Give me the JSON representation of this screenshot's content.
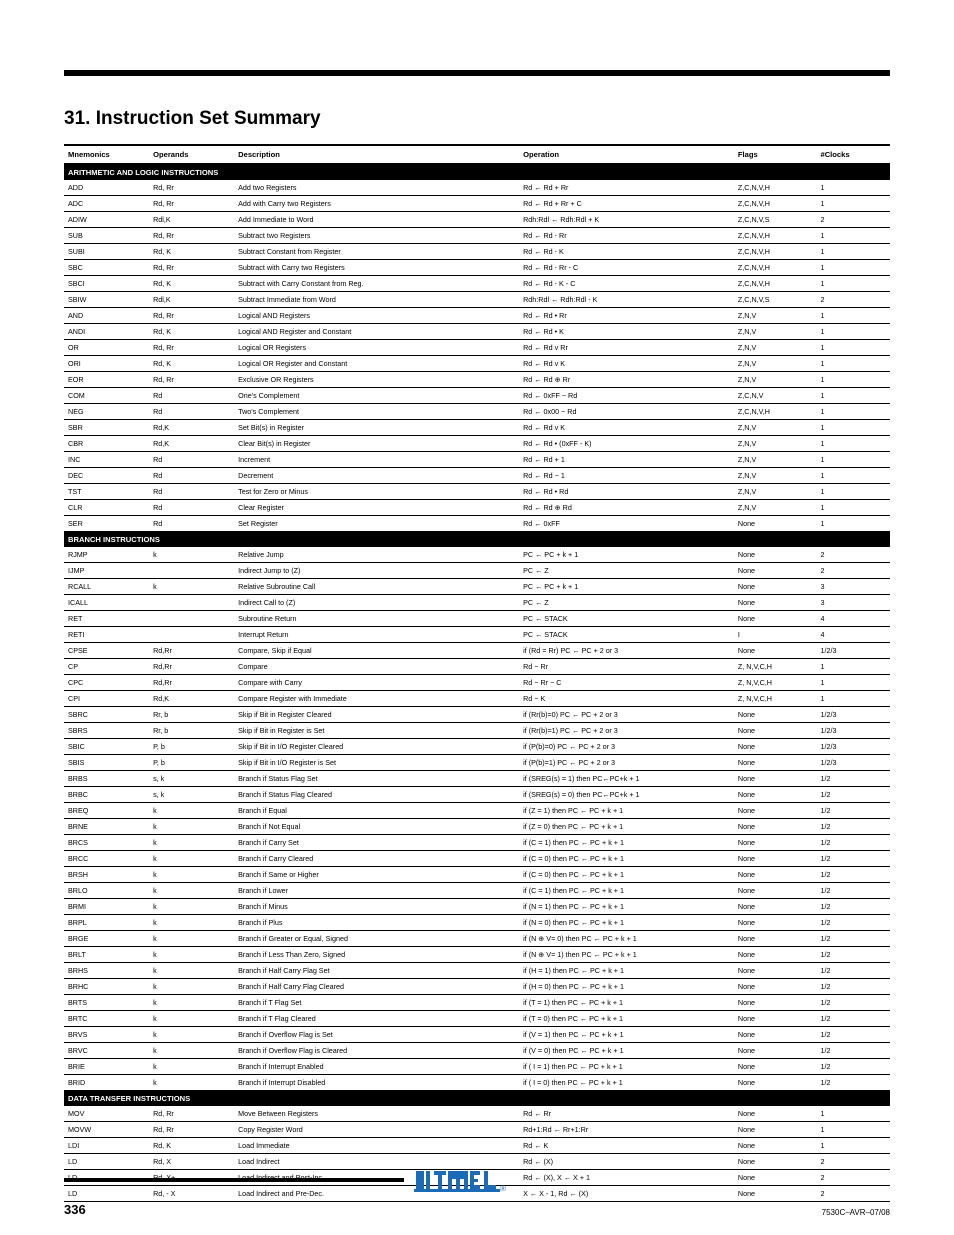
{
  "heading": "31.  Instruction Set Summary",
  "columns": [
    "Mnemonics",
    "Operands",
    "Description",
    "Operation",
    "Flags",
    "#Clocks"
  ],
  "sections": [
    {
      "title": "ARITHMETIC AND LOGIC INSTRUCTIONS",
      "rows": [
        {
          "mn": "ADD",
          "op": "Rd, Rr",
          "desc": "Add two Registers",
          "oper": "Rd ← Rd + Rr",
          "flags": "Z,C,N,V,H",
          "clk": "1"
        },
        {
          "mn": "ADC",
          "op": "Rd, Rr",
          "desc": "Add with Carry two Registers",
          "oper": "Rd ← Rd + Rr + C",
          "flags": "Z,C,N,V,H",
          "clk": "1"
        },
        {
          "mn": "ADIW",
          "op": "Rdl,K",
          "desc": "Add Immediate to Word",
          "oper": "Rdh:Rdl ← Rdh:Rdl + K",
          "flags": "Z,C,N,V,S",
          "clk": "2"
        },
        {
          "mn": "SUB",
          "op": "Rd, Rr",
          "desc": "Subtract two Registers",
          "oper": "Rd ← Rd - Rr",
          "flags": "Z,C,N,V,H",
          "clk": "1"
        },
        {
          "mn": "SUBI",
          "op": "Rd, K",
          "desc": "Subtract Constant from Register",
          "oper": "Rd ← Rd - K",
          "flags": "Z,C,N,V,H",
          "clk": "1"
        },
        {
          "mn": "SBC",
          "op": "Rd, Rr",
          "desc": "Subtract with Carry two Registers",
          "oper": "Rd ← Rd - Rr - C",
          "flags": "Z,C,N,V,H",
          "clk": "1"
        },
        {
          "mn": "SBCI",
          "op": "Rd, K",
          "desc": "Subtract with Carry Constant from Reg.",
          "oper": "Rd ← Rd - K - C",
          "flags": "Z,C,N,V,H",
          "clk": "1"
        },
        {
          "mn": "SBIW",
          "op": "Rdl,K",
          "desc": "Subtract Immediate from Word",
          "oper": "Rdh:Rdl ← Rdh:Rdl - K",
          "flags": "Z,C,N,V,S",
          "clk": "2"
        },
        {
          "mn": "AND",
          "op": "Rd, Rr",
          "desc": "Logical AND Registers",
          "oper": "Rd ← Rd • Rr",
          "flags": "Z,N,V",
          "clk": "1"
        },
        {
          "mn": "ANDI",
          "op": "Rd, K",
          "desc": "Logical AND Register and Constant",
          "oper": "Rd ← Rd • K",
          "flags": "Z,N,V",
          "clk": "1"
        },
        {
          "mn": "OR",
          "op": "Rd, Rr",
          "desc": "Logical OR Registers",
          "oper": "Rd ← Rd v Rr",
          "flags": "Z,N,V",
          "clk": "1"
        },
        {
          "mn": "ORI",
          "op": "Rd, K",
          "desc": "Logical OR Register and Constant",
          "oper": "Rd ← Rd v K",
          "flags": "Z,N,V",
          "clk": "1"
        },
        {
          "mn": "EOR",
          "op": "Rd, Rr",
          "desc": "Exclusive OR Registers",
          "oper": "Rd ← Rd ⊕ Rr",
          "flags": "Z,N,V",
          "clk": "1"
        },
        {
          "mn": "COM",
          "op": "Rd",
          "desc": "One's Complement",
          "oper": "Rd ← 0xFF − Rd",
          "flags": "Z,C,N,V",
          "clk": "1"
        },
        {
          "mn": "NEG",
          "op": "Rd",
          "desc": "Two's Complement",
          "oper": "Rd ← 0x00 − Rd",
          "flags": "Z,C,N,V,H",
          "clk": "1"
        },
        {
          "mn": "SBR",
          "op": "Rd,K",
          "desc": "Set Bit(s) in Register",
          "oper": "Rd ← Rd v K",
          "flags": "Z,N,V",
          "clk": "1"
        },
        {
          "mn": "CBR",
          "op": "Rd,K",
          "desc": "Clear Bit(s) in Register",
          "oper": "Rd ← Rd • (0xFF - K)",
          "flags": "Z,N,V",
          "clk": "1"
        },
        {
          "mn": "INC",
          "op": "Rd",
          "desc": "Increment",
          "oper": "Rd ← Rd + 1",
          "flags": "Z,N,V",
          "clk": "1"
        },
        {
          "mn": "DEC",
          "op": "Rd",
          "desc": "Decrement",
          "oper": "Rd ← Rd − 1",
          "flags": "Z,N,V",
          "clk": "1"
        },
        {
          "mn": "TST",
          "op": "Rd",
          "desc": "Test for Zero or Minus",
          "oper": "Rd ← Rd • Rd",
          "flags": "Z,N,V",
          "clk": "1"
        },
        {
          "mn": "CLR",
          "op": "Rd",
          "desc": "Clear Register",
          "oper": "Rd  ← Rd ⊕ Rd",
          "flags": "Z,N,V",
          "clk": "1"
        },
        {
          "mn": "SER",
          "op": "Rd",
          "desc": "Set Register",
          "oper": "Rd ← 0xFF",
          "flags": "None",
          "clk": "1"
        }
      ]
    },
    {
      "title": "BRANCH INSTRUCTIONS",
      "rows": [
        {
          "mn": "RJMP",
          "op": "k",
          "desc": "Relative Jump",
          "oper": "PC ← PC + k + 1",
          "flags": "None",
          "clk": "2"
        },
        {
          "mn": "IJMP",
          "op": "",
          "desc": "Indirect Jump to (Z)",
          "oper": "PC ← Z",
          "flags": "None",
          "clk": "2"
        },
        {
          "mn": "RCALL",
          "op": "k",
          "desc": "Relative Subroutine Call",
          "oper": "PC ← PC + k + 1",
          "flags": "None",
          "clk": "3"
        },
        {
          "mn": "ICALL",
          "op": "",
          "desc": "Indirect Call to (Z)",
          "oper": "PC ← Z",
          "flags": "None",
          "clk": "3"
        },
        {
          "mn": "RET",
          "op": "",
          "desc": "Subroutine Return",
          "oper": "PC ← STACK",
          "flags": "None",
          "clk": "4"
        },
        {
          "mn": "RETI",
          "op": "",
          "desc": "Interrupt Return",
          "oper": "PC ← STACK",
          "flags": "I",
          "clk": "4"
        },
        {
          "mn": "CPSE",
          "op": "Rd,Rr",
          "desc": "Compare, Skip if Equal",
          "oper": "if (Rd = Rr) PC ← PC + 2 or 3",
          "flags": "None",
          "clk": "1/2/3"
        },
        {
          "mn": "CP",
          "op": "Rd,Rr",
          "desc": "Compare",
          "oper": "Rd − Rr",
          "flags": "Z, N,V,C,H",
          "clk": "1"
        },
        {
          "mn": "CPC",
          "op": "Rd,Rr",
          "desc": "Compare with Carry",
          "oper": "Rd − Rr − C",
          "flags": "Z, N,V,C,H",
          "clk": "1"
        },
        {
          "mn": "CPI",
          "op": "Rd,K",
          "desc": "Compare Register with Immediate",
          "oper": "Rd − K",
          "flags": "Z, N,V,C,H",
          "clk": "1"
        },
        {
          "mn": "SBRC",
          "op": "Rr, b",
          "desc": "Skip if Bit in Register Cleared",
          "oper": "if (Rr(b)=0) PC ← PC + 2 or 3",
          "flags": "None",
          "clk": "1/2/3"
        },
        {
          "mn": "SBRS",
          "op": "Rr, b",
          "desc": "Skip if Bit in Register is Set",
          "oper": "if (Rr(b)=1) PC ← PC + 2 or 3",
          "flags": "None",
          "clk": "1/2/3"
        },
        {
          "mn": "SBIC",
          "op": "P, b",
          "desc": "Skip if Bit in I/O Register Cleared",
          "oper": "if (P(b)=0) PC ← PC + 2 or 3",
          "flags": "None",
          "clk": "1/2/3"
        },
        {
          "mn": "SBIS",
          "op": "P, b",
          "desc": "Skip if Bit in I/O Register is Set",
          "oper": "if (P(b)=1) PC ← PC + 2 or 3",
          "flags": "None",
          "clk": "1/2/3"
        },
        {
          "mn": "BRBS",
          "op": "s, k",
          "desc": "Branch if Status Flag Set",
          "oper": "if (SREG(s) = 1) then PC←PC+k + 1",
          "flags": "None",
          "clk": "1/2"
        },
        {
          "mn": "BRBC",
          "op": "s, k",
          "desc": "Branch if Status Flag Cleared",
          "oper": "if (SREG(s) = 0) then PC←PC+k + 1",
          "flags": "None",
          "clk": "1/2"
        },
        {
          "mn": "BREQ",
          "op": " k",
          "desc": "Branch if Equal",
          "oper": "if (Z = 1) then PC ← PC + k + 1",
          "flags": "None",
          "clk": "1/2"
        },
        {
          "mn": "BRNE",
          "op": " k",
          "desc": "Branch if Not Equal",
          "oper": "if (Z = 0) then PC ← PC + k + 1",
          "flags": "None",
          "clk": "1/2"
        },
        {
          "mn": "BRCS",
          "op": " k",
          "desc": "Branch if Carry Set",
          "oper": "if (C = 1) then PC ← PC + k + 1",
          "flags": "None",
          "clk": "1/2"
        },
        {
          "mn": "BRCC",
          "op": " k",
          "desc": "Branch if Carry Cleared",
          "oper": "if (C = 0) then PC ← PC + k + 1",
          "flags": "None",
          "clk": "1/2"
        },
        {
          "mn": "BRSH",
          "op": " k",
          "desc": "Branch if Same or Higher",
          "oper": "if (C = 0) then PC ← PC + k + 1",
          "flags": "None",
          "clk": "1/2"
        },
        {
          "mn": "BRLO",
          "op": " k",
          "desc": "Branch if Lower",
          "oper": "if (C = 1) then PC ← PC + k + 1",
          "flags": "None",
          "clk": "1/2"
        },
        {
          "mn": "BRMI",
          "op": " k",
          "desc": "Branch if Minus",
          "oper": "if (N = 1) then PC ← PC + k + 1",
          "flags": "None",
          "clk": "1/2"
        },
        {
          "mn": "BRPL",
          "op": " k",
          "desc": "Branch if Plus",
          "oper": "if (N = 0) then PC ← PC + k + 1",
          "flags": "None",
          "clk": "1/2"
        },
        {
          "mn": "BRGE",
          "op": " k",
          "desc": "Branch if Greater or Equal, Signed",
          "oper": "if (N ⊕ V= 0) then PC ← PC + k + 1",
          "flags": "None",
          "clk": "1/2"
        },
        {
          "mn": "BRLT",
          "op": " k",
          "desc": "Branch if Less Than Zero, Signed",
          "oper": "if (N ⊕ V= 1) then PC ← PC + k + 1",
          "flags": "None",
          "clk": "1/2"
        },
        {
          "mn": "BRHS",
          "op": " k",
          "desc": "Branch if Half Carry Flag Set",
          "oper": "if (H = 1) then PC ← PC + k + 1",
          "flags": "None",
          "clk": "1/2"
        },
        {
          "mn": "BRHC",
          "op": " k",
          "desc": "Branch if Half Carry Flag Cleared",
          "oper": "if (H = 0) then PC ← PC + k + 1",
          "flags": "None",
          "clk": "1/2"
        },
        {
          "mn": "BRTS",
          "op": " k",
          "desc": "Branch if T Flag Set",
          "oper": "if (T = 1) then PC ← PC + k + 1",
          "flags": "None",
          "clk": "1/2"
        },
        {
          "mn": "BRTC",
          "op": " k",
          "desc": "Branch if T Flag Cleared",
          "oper": "if (T = 0) then PC ← PC + k + 1",
          "flags": "None",
          "clk": "1/2"
        },
        {
          "mn": "BRVS",
          "op": " k",
          "desc": "Branch if Overflow Flag is Set",
          "oper": "if (V = 1) then PC ← PC + k + 1",
          "flags": "None",
          "clk": "1/2"
        },
        {
          "mn": "BRVC",
          "op": " k",
          "desc": "Branch if Overflow Flag is Cleared",
          "oper": "if (V = 0) then PC ← PC + k + 1",
          "flags": "None",
          "clk": "1/2"
        },
        {
          "mn": "BRIE",
          "op": " k",
          "desc": "Branch if Interrupt Enabled",
          "oper": "if ( I = 1) then PC ← PC + k + 1",
          "flags": "None",
          "clk": "1/2"
        },
        {
          "mn": "BRID",
          "op": " k",
          "desc": "Branch if Interrupt Disabled",
          "oper": "if ( I = 0) then PC ← PC + k + 1",
          "flags": "None",
          "clk": "1/2"
        }
      ]
    },
    {
      "title": "DATA TRANSFER INSTRUCTIONS",
      "rows": [
        {
          "mn": "MOV",
          "op": "Rd, Rr",
          "desc": "Move Between Registers",
          "oper": "Rd ← Rr",
          "flags": "None",
          "clk": "1"
        },
        {
          "mn": "MOVW",
          "op": "Rd, Rr",
          "desc": "Copy Register Word",
          "oper": "Rd+1:Rd ← Rr+1:Rr",
          "flags": "None",
          "clk": "1"
        },
        {
          "mn": "LDI",
          "op": "Rd, K",
          "desc": "Load Immediate",
          "oper": "Rd ← K",
          "flags": "None",
          "clk": "1"
        },
        {
          "mn": "LD",
          "op": "Rd, X",
          "desc": "Load Indirect",
          "oper": "Rd ← (X)",
          "flags": "None",
          "clk": "2"
        },
        {
          "mn": "LD",
          "op": "Rd, X+",
          "desc": "Load Indirect and Post-Inc.",
          "oper": "Rd ← (X), X ← X + 1",
          "flags": "None",
          "clk": "2"
        },
        {
          "mn": "LD",
          "op": "Rd, - X",
          "desc": "Load Indirect and Pre-Dec.",
          "oper": "X ← X - 1, Rd ← (X)",
          "flags": "None",
          "clk": "2"
        }
      ]
    }
  ],
  "footer": {
    "page_number": "336",
    "doc_id": "7530C–AVR–07/08",
    "logo_color": "#1b6bb8",
    "logo_text": "ATMEL",
    "logo_reg": "®"
  }
}
